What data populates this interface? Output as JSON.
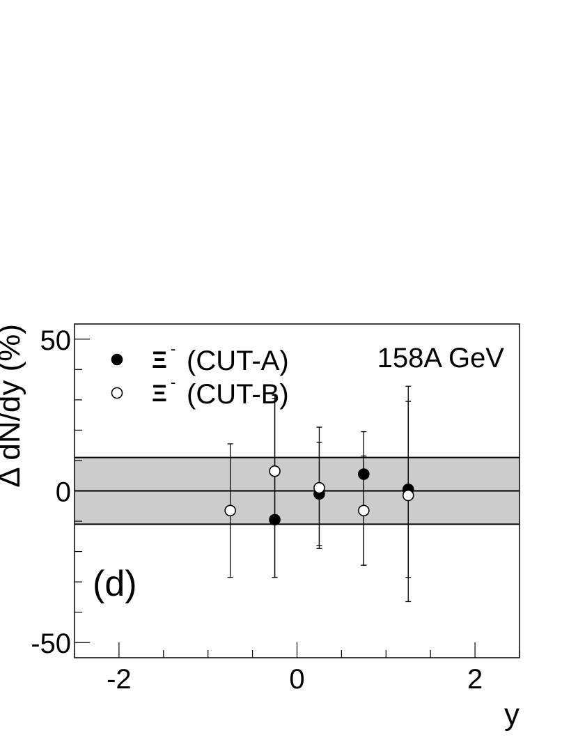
{
  "chart_data": {
    "type": "scatter",
    "title": "",
    "xlabel": "y",
    "ylabel": "Δ dN/dy (%)",
    "xlim": [
      -2.5,
      2.5
    ],
    "ylim": [
      -55,
      55
    ],
    "x_ticks": [
      -2,
      0,
      2
    ],
    "x_tick_labels": [
      "-2",
      "0",
      "2"
    ],
    "y_ticks": [
      -50,
      0,
      50
    ],
    "y_tick_labels": [
      "-50",
      "0",
      "50"
    ],
    "grid": false,
    "legend_position": "top-left",
    "annotations": {
      "energy": "158A GeV",
      "panel": "(d)"
    },
    "band": {
      "lower": -11,
      "upper": 11,
      "color": "#cccccc"
    },
    "reference_line": 0,
    "series": [
      {
        "name": "(CUT-A)",
        "symbol": "Ξ",
        "charge": "-",
        "marker": "filled-circle",
        "color": "#000000",
        "points": [
          {
            "x": -0.25,
            "y": -9.5,
            "err_lo": 19,
            "err_hi": 40
          },
          {
            "x": 0.25,
            "y": -1,
            "err_lo": 17,
            "err_hi": 17
          },
          {
            "x": 0.75,
            "y": 5.5,
            "err_lo": 30,
            "err_hi": 14
          },
          {
            "x": 1.25,
            "y": 0.5,
            "err_lo": 29,
            "err_hi": 29
          }
        ]
      },
      {
        "name": "(CUT-B)",
        "symbol": "Ξ",
        "charge": "-",
        "marker": "open-circle",
        "color": "#000000",
        "points": [
          {
            "x": -0.75,
            "y": -6.5,
            "err_lo": 22,
            "err_hi": 22
          },
          {
            "x": -0.25,
            "y": 6.5,
            "err_lo": 35,
            "err_hi": 25
          },
          {
            "x": 0.25,
            "y": 1,
            "err_lo": 20,
            "err_hi": 20
          },
          {
            "x": 0.75,
            "y": -6.5,
            "err_lo": 18,
            "err_hi": 18
          },
          {
            "x": 1.25,
            "y": -1.5,
            "err_lo": 35,
            "err_hi": 36
          }
        ]
      }
    ]
  }
}
